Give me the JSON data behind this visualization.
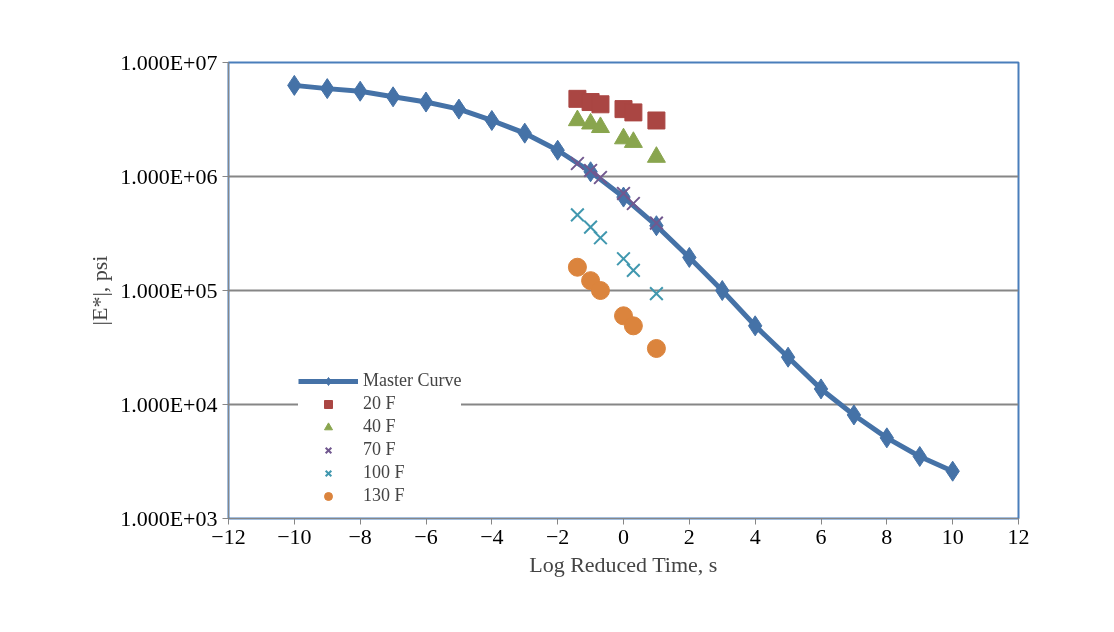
{
  "chart_data": {
    "type": "scatter",
    "xlabel": "Log Reduced Time, s",
    "ylabel": "|E*|, psi",
    "log": "y",
    "grid": "y",
    "legend": "bottom left",
    "xlim": [
      -12,
      12
    ],
    "xticks": [
      -12,
      -10,
      -8,
      -6,
      -4,
      -2,
      0,
      2,
      4,
      6,
      8,
      10,
      12
    ],
    "ylim": [
      1000,
      10000000
    ],
    "yticks": [
      {
        "value": 1000,
        "label": "1.000E+03"
      },
      {
        "value": 10000,
        "label": "1.000E+04"
      },
      {
        "value": 100000,
        "label": "1.000E+05"
      },
      {
        "value": 1000000,
        "label": "1.000E+06"
      },
      {
        "value": 10000000,
        "label": "1.000E+07"
      }
    ],
    "series": [
      {
        "name": "Master Curve",
        "type": "line",
        "marker": "diamond",
        "color": "#4572a7",
        "x": [
          -10,
          -9,
          -8,
          -7,
          -6,
          -5,
          -4,
          -3,
          -2,
          -1,
          0,
          1,
          2,
          3,
          4,
          5,
          6,
          7,
          8,
          9,
          10
        ],
        "values": [
          6300000,
          5900000,
          5600000,
          5000000,
          4500000,
          3900000,
          3100000,
          2400000,
          1700000,
          1100000,
          660000,
          370000,
          195000,
          100000,
          49000,
          26000,
          13700,
          8100,
          5100,
          3500,
          2600
        ]
      },
      {
        "name": "20 F",
        "type": "scatter",
        "marker": "square",
        "color": "#aa4643",
        "x": [
          -1.4,
          -1,
          -0.7,
          0,
          0.3,
          1
        ],
        "values": [
          4800000,
          4500000,
          4300000,
          3900000,
          3650000,
          3100000
        ]
      },
      {
        "name": "40 F",
        "type": "scatter",
        "marker": "triangle",
        "color": "#89a54e",
        "x": [
          -1.4,
          -1,
          -0.7,
          0,
          0.3,
          1
        ],
        "values": [
          3100000,
          2900000,
          2700000,
          2150000,
          2000000,
          1480000
        ]
      },
      {
        "name": "70 F",
        "type": "scatter",
        "marker": "cross",
        "color": "#71588f",
        "x": [
          -1.4,
          -1,
          -0.7,
          0,
          0.3,
          1
        ],
        "values": [
          1300000,
          1130000,
          980000,
          710000,
          580000,
          390000
        ]
      },
      {
        "name": "100 F",
        "type": "scatter",
        "marker": "cross",
        "color": "#4198af",
        "x": [
          -1.4,
          -1,
          -0.7,
          0,
          0.3,
          1
        ],
        "values": [
          460000,
          360000,
          290000,
          190000,
          150000,
          94000
        ]
      },
      {
        "name": "130 F",
        "type": "scatter",
        "marker": "circle",
        "color": "#db843d",
        "x": [
          -1.4,
          -1,
          -0.7,
          0,
          0.3,
          1
        ],
        "values": [
          160000,
          122000,
          100000,
          60000,
          49000,
          31000
        ]
      }
    ]
  }
}
